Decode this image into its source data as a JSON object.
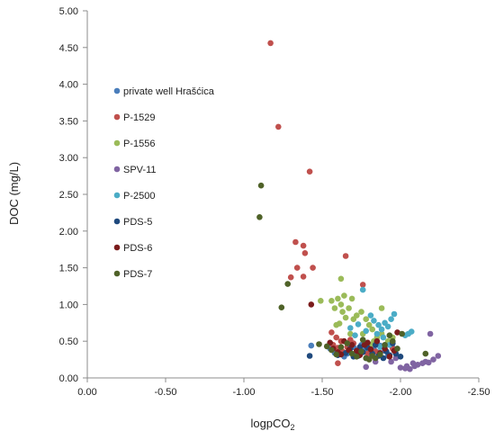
{
  "chart_data": {
    "type": "scatter",
    "title": "",
    "xlabel_main": "logpCO",
    "xlabel_sub": "2",
    "ylabel": "DOC (mg/L)",
    "xlim": [
      0,
      -2.5
    ],
    "ylim": [
      0,
      5
    ],
    "x_ticks": [
      0,
      -0.5,
      -1,
      -1.5,
      -2,
      -2.5
    ],
    "x_tick_labels": [
      "0.00",
      "-0.50",
      "-1.00",
      "-1.50",
      "-2.00",
      "-2.50"
    ],
    "y_ticks": [
      0,
      0.5,
      1,
      1.5,
      2,
      2.5,
      3,
      3.5,
      4,
      4.5,
      5
    ],
    "y_tick_labels": [
      "0.00",
      "0.50",
      "1.00",
      "1.50",
      "2.00",
      "2.50",
      "3.00",
      "3.50",
      "4.00",
      "4.50",
      "5.00"
    ],
    "grid": false,
    "legend_position": "upper-left inside",
    "series": [
      {
        "name": "private well Hrašćica",
        "color": "#4a7ebb",
        "points": [
          [
            -1.43,
            0.44
          ],
          [
            -1.55,
            0.4
          ],
          [
            -1.62,
            0.37
          ],
          [
            -1.66,
            0.33
          ],
          [
            -1.7,
            0.42
          ],
          [
            -1.72,
            0.35
          ],
          [
            -1.75,
            0.45
          ],
          [
            -1.77,
            0.38
          ],
          [
            -1.8,
            0.31
          ],
          [
            -1.83,
            0.4
          ],
          [
            -1.85,
            0.35
          ],
          [
            -1.87,
            0.44
          ],
          [
            -1.9,
            0.37
          ],
          [
            -1.92,
            0.3
          ],
          [
            -1.95,
            0.41
          ],
          [
            -1.78,
            0.27
          ],
          [
            -1.64,
            0.29
          ],
          [
            -1.58,
            0.34
          ]
        ]
      },
      {
        "name": "P-1529",
        "color": "#c0504d",
        "points": [
          [
            -1.17,
            4.56
          ],
          [
            -1.22,
            3.42
          ],
          [
            -1.42,
            2.81
          ],
          [
            -1.33,
            1.85
          ],
          [
            -1.38,
            1.8
          ],
          [
            -1.39,
            1.7
          ],
          [
            -1.65,
            1.66
          ],
          [
            -1.34,
            1.5
          ],
          [
            -1.44,
            1.5
          ],
          [
            -1.3,
            1.37
          ],
          [
            -1.38,
            1.38
          ],
          [
            -1.76,
            1.27
          ],
          [
            -1.56,
            0.62
          ],
          [
            -1.59,
            0.55
          ],
          [
            -1.62,
            0.5
          ],
          [
            -1.57,
            0.45
          ],
          [
            -1.6,
            0.41
          ],
          [
            -1.63,
            0.36
          ],
          [
            -1.66,
            0.42
          ],
          [
            -1.7,
            0.47
          ],
          [
            -1.73,
            0.38
          ],
          [
            -1.79,
            0.33
          ],
          [
            -1.84,
            0.36
          ],
          [
            -1.95,
            0.4
          ],
          [
            -1.6,
            0.2
          ],
          [
            -1.68,
            0.52
          ]
        ]
      },
      {
        "name": "P-1556",
        "color": "#9bbb59",
        "points": [
          [
            -1.56,
            1.05
          ],
          [
            -1.58,
            0.95
          ],
          [
            -1.6,
            1.08
          ],
          [
            -1.62,
            1.0
          ],
          [
            -1.63,
            0.9
          ],
          [
            -1.65,
            0.82
          ],
          [
            -1.67,
            0.95
          ],
          [
            -1.7,
            0.8
          ],
          [
            -1.72,
            0.85
          ],
          [
            -1.75,
            0.9
          ],
          [
            -1.78,
            0.8
          ],
          [
            -1.8,
            0.72
          ],
          [
            -1.82,
            0.66
          ],
          [
            -1.64,
            1.12
          ],
          [
            -1.61,
            0.74
          ],
          [
            -1.68,
            0.6
          ],
          [
            -1.59,
            0.72
          ],
          [
            -1.85,
            0.55
          ],
          [
            -1.88,
            0.6
          ],
          [
            -1.92,
            0.5
          ],
          [
            -1.95,
            0.55
          ],
          [
            -1.69,
            1.08
          ],
          [
            -1.76,
            0.6
          ],
          [
            -1.81,
            0.45
          ],
          [
            -1.88,
            0.95
          ],
          [
            -1.62,
            1.35
          ],
          [
            -1.49,
            1.05
          ],
          [
            -1.83,
            0.5
          ]
        ]
      },
      {
        "name": "SPV-11",
        "color": "#8064a2",
        "points": [
          [
            -2.0,
            0.14
          ],
          [
            -2.03,
            0.13
          ],
          [
            -2.06,
            0.12
          ],
          [
            -2.09,
            0.16
          ],
          [
            -2.11,
            0.18
          ],
          [
            -2.14,
            0.2
          ],
          [
            -2.16,
            0.22
          ],
          [
            -2.18,
            0.21
          ],
          [
            -2.21,
            0.25
          ],
          [
            -2.24,
            0.3
          ],
          [
            -2.04,
            0.16
          ],
          [
            -1.94,
            0.22
          ],
          [
            -1.97,
            0.27
          ],
          [
            -2.08,
            0.2
          ],
          [
            -2.19,
            0.6
          ],
          [
            -1.78,
            0.15
          ],
          [
            -1.84,
            0.22
          ]
        ]
      },
      {
        "name": "P-2500",
        "color": "#4bacc6",
        "points": [
          [
            -1.76,
            1.2
          ],
          [
            -1.81,
            0.85
          ],
          [
            -1.83,
            0.78
          ],
          [
            -1.86,
            0.72
          ],
          [
            -1.88,
            0.66
          ],
          [
            -1.9,
            0.75
          ],
          [
            -1.92,
            0.7
          ],
          [
            -1.94,
            0.8
          ],
          [
            -1.96,
            0.87
          ],
          [
            -2.05,
            0.6
          ],
          [
            -2.07,
            0.63
          ],
          [
            -1.73,
            0.73
          ],
          [
            -1.78,
            0.64
          ],
          [
            -1.85,
            0.6
          ],
          [
            -1.89,
            0.55
          ],
          [
            -1.68,
            0.68
          ],
          [
            -1.71,
            0.58
          ],
          [
            -1.93,
            0.45
          ],
          [
            -2.03,
            0.58
          ],
          [
            -1.87,
            0.42
          ]
        ]
      },
      {
        "name": "PDS-5",
        "color": "#1f497d",
        "points": [
          [
            -1.42,
            0.3
          ],
          [
            -1.6,
            0.31
          ],
          [
            -1.65,
            0.34
          ],
          [
            -1.7,
            0.29
          ],
          [
            -1.73,
            0.3
          ],
          [
            -1.76,
            0.35
          ],
          [
            -1.79,
            0.41
          ],
          [
            -1.82,
            0.33
          ],
          [
            -1.86,
            0.3
          ],
          [
            -1.89,
            0.27
          ],
          [
            -1.91,
            0.36
          ],
          [
            -1.93,
            0.31
          ],
          [
            -1.95,
            0.47
          ],
          [
            -1.97,
            0.33
          ],
          [
            -2.0,
            0.29
          ],
          [
            -1.68,
            0.4
          ],
          [
            -1.74,
            0.42
          ],
          [
            -1.84,
            0.45
          ]
        ]
      },
      {
        "name": "PDS-6",
        "color": "#7b1c1c",
        "points": [
          [
            -1.43,
            1.0
          ],
          [
            -1.55,
            0.48
          ],
          [
            -1.57,
            0.4
          ],
          [
            -1.6,
            0.35
          ],
          [
            -1.62,
            0.32
          ],
          [
            -1.67,
            0.38
          ],
          [
            -1.69,
            0.45
          ],
          [
            -1.72,
            0.37
          ],
          [
            -1.74,
            0.31
          ],
          [
            -1.77,
            0.45
          ],
          [
            -1.79,
            0.48
          ],
          [
            -1.81,
            0.39
          ],
          [
            -1.85,
            0.5
          ],
          [
            -1.87,
            0.34
          ],
          [
            -1.9,
            0.4
          ],
          [
            -1.93,
            0.29
          ],
          [
            -1.96,
            0.37
          ],
          [
            -1.98,
            0.62
          ],
          [
            -1.64,
            0.5
          ]
        ]
      },
      {
        "name": "PDS-7",
        "color": "#4f6228",
        "points": [
          [
            -1.11,
            2.62
          ],
          [
            -1.1,
            2.19
          ],
          [
            -1.28,
            1.28
          ],
          [
            -1.24,
            0.96
          ],
          [
            -1.48,
            0.46
          ],
          [
            -1.53,
            0.43
          ],
          [
            -1.56,
            0.38
          ],
          [
            -1.59,
            0.32
          ],
          [
            -1.62,
            0.42
          ],
          [
            -1.66,
            0.47
          ],
          [
            -1.69,
            0.33
          ],
          [
            -1.72,
            0.29
          ],
          [
            -1.75,
            0.36
          ],
          [
            -1.78,
            0.27
          ],
          [
            -1.8,
            0.25
          ],
          [
            -1.82,
            0.3
          ],
          [
            -1.84,
            0.27
          ],
          [
            -1.87,
            0.32
          ],
          [
            -1.9,
            0.45
          ],
          [
            -1.95,
            0.5
          ],
          [
            -2.01,
            0.6
          ],
          [
            -2.16,
            0.33
          ],
          [
            -1.93,
            0.58
          ],
          [
            -1.98,
            0.4
          ],
          [
            -1.76,
            0.52
          ]
        ]
      }
    ]
  }
}
